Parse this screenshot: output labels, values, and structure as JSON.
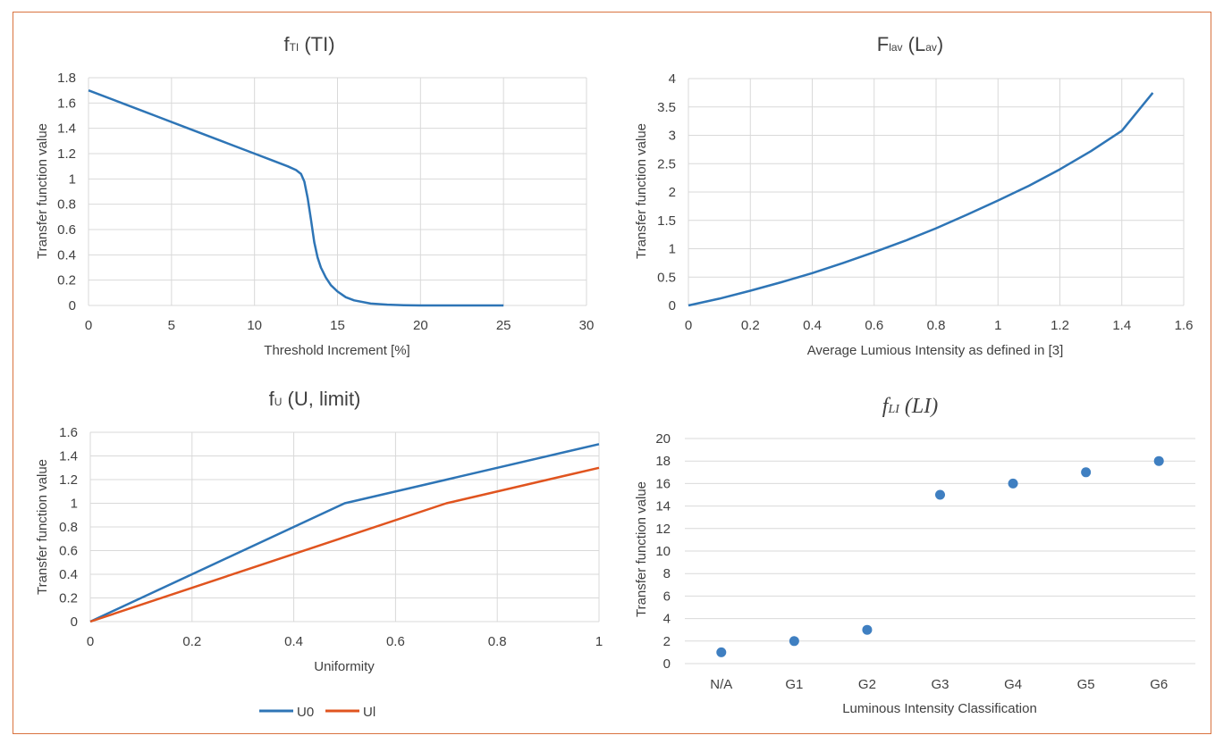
{
  "colors": {
    "blue": "#2e75b6",
    "orange": "#e0541f",
    "point": "#3f7fc1"
  },
  "chart_data": [
    {
      "id": "c1",
      "type": "line",
      "title": {
        "main": "f",
        "sub": "TI",
        "rest": " (TI)"
      },
      "xlabel": "Threshold Increment [%]",
      "ylabel": "Transfer function value",
      "xlim": [
        0,
        30
      ],
      "ylim": [
        0,
        1.8
      ],
      "xticks": [
        0,
        5,
        10,
        15,
        20,
        25,
        30
      ],
      "yticks": [
        0,
        0.2,
        0.4,
        0.6,
        0.8,
        1,
        1.2,
        1.4,
        1.6,
        1.8
      ],
      "grid": true,
      "series": [
        {
          "color": "#2e75b6",
          "x": [
            0,
            2,
            4,
            6,
            8,
            10,
            11,
            12,
            12.5,
            12.8,
            13,
            13.2,
            13.4,
            13.6,
            13.8,
            14,
            14.3,
            14.6,
            15,
            15.5,
            16,
            17,
            18,
            19,
            20,
            22,
            25
          ],
          "y": [
            1.7,
            1.6,
            1.5,
            1.4,
            1.3,
            1.2,
            1.15,
            1.1,
            1.07,
            1.04,
            0.98,
            0.85,
            0.68,
            0.5,
            0.38,
            0.3,
            0.22,
            0.16,
            0.11,
            0.065,
            0.04,
            0.015,
            0.006,
            0.002,
            0,
            0,
            0
          ]
        }
      ]
    },
    {
      "id": "c2",
      "type": "line",
      "title": {
        "main": "F",
        "sub": "lav",
        "rest": " (L",
        "sub2": "av",
        "rest2": ")"
      },
      "xlabel": "Average Lumious Intensity as defined in [3]",
      "ylabel": "Transfer function value",
      "xlim": [
        0,
        1.6
      ],
      "ylim": [
        0,
        4
      ],
      "xticks": [
        0,
        0.2,
        0.4,
        0.6,
        0.8,
        1,
        1.2,
        1.4,
        1.6
      ],
      "xticklabels": [
        "0",
        "0.2",
        "0.4",
        "0.6",
        "0.8",
        "1",
        "1.2",
        "1.4",
        "1.6"
      ],
      "yticks": [
        0,
        0.5,
        1,
        1.5,
        2,
        2.5,
        3,
        3.5,
        4
      ],
      "grid": true,
      "series": [
        {
          "color": "#2e75b6",
          "x": [
            0,
            0.1,
            0.2,
            0.3,
            0.4,
            0.5,
            0.6,
            0.7,
            0.8,
            0.9,
            1.0,
            1.1,
            1.2,
            1.3,
            1.4,
            1.5
          ],
          "y": [
            0,
            0.12,
            0.26,
            0.41,
            0.57,
            0.75,
            0.94,
            1.14,
            1.36,
            1.6,
            1.85,
            2.11,
            2.4,
            2.72,
            3.08,
            3.75
          ]
        }
      ]
    },
    {
      "id": "c3",
      "type": "line",
      "title": {
        "main": "f",
        "sub": "U",
        "rest": " (U, limit)"
      },
      "xlabel": "Uniformity",
      "ylabel": "Transfer function value",
      "xlim": [
        0,
        1
      ],
      "ylim": [
        0,
        1.6
      ],
      "xticks": [
        0,
        0.2,
        0.4,
        0.6,
        0.8,
        1
      ],
      "yticks": [
        0,
        0.2,
        0.4,
        0.6,
        0.8,
        1,
        1.2,
        1.4,
        1.6
      ],
      "grid": true,
      "legend_position": "bottom",
      "series": [
        {
          "name": "U0",
          "color": "#2e75b6",
          "x": [
            0,
            0.5,
            0.52,
            1.0
          ],
          "y": [
            0,
            1.0,
            1.02,
            1.5
          ]
        },
        {
          "name": "Ul",
          "color": "#e0541f",
          "x": [
            0,
            0.7,
            0.72,
            1.0
          ],
          "y": [
            0,
            1.0,
            1.02,
            1.3
          ]
        }
      ]
    },
    {
      "id": "c4",
      "type": "scatter",
      "title": {
        "main": "f",
        "sub": "LI",
        "rest": " (LI)"
      },
      "xlabel": "Luminous Intensity Classification",
      "ylabel": "Transfer function value",
      "categories": [
        "N/A",
        "G1",
        "G2",
        "G3",
        "G4",
        "G5",
        "G6"
      ],
      "values": [
        1,
        2,
        3,
        15,
        16,
        17,
        18
      ],
      "ylim": [
        0,
        20
      ],
      "yticks": [
        0,
        2,
        4,
        6,
        8,
        10,
        12,
        14,
        16,
        18,
        20
      ],
      "grid": true,
      "series": [
        {
          "color": "#3f7fc1"
        }
      ]
    }
  ]
}
